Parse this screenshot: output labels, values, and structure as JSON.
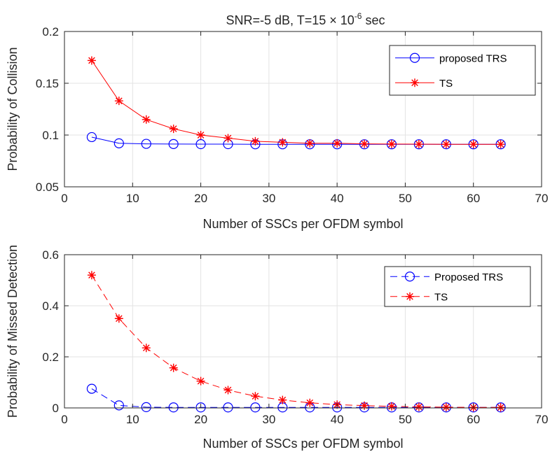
{
  "figure": {
    "title": "SNR=-5 dB, T=15 × 10",
    "title_exponent": "-6",
    "title_suffix": " sec"
  },
  "chart_data": [
    {
      "type": "line",
      "xlabel": "Number of SSCs per OFDM symbol",
      "ylabel": "Probability of Collision",
      "xlim": [
        0,
        70
      ],
      "ylim": [
        0.05,
        0.2
      ],
      "xticks": [
        0,
        10,
        20,
        30,
        40,
        50,
        60,
        70
      ],
      "yticks": [
        0.05,
        0.1,
        0.15,
        0.2
      ],
      "ytick_labels": [
        "0.05",
        "0.1",
        "0.15",
        "0.2"
      ],
      "grid": true,
      "legend_position": "top-right",
      "x": [
        4,
        8,
        12,
        16,
        20,
        24,
        28,
        32,
        36,
        40,
        44,
        48,
        52,
        56,
        60,
        64
      ],
      "series": [
        {
          "name": "proposed TRS",
          "color": "#0000ff",
          "marker": "circle",
          "line": "solid",
          "values": [
            0.098,
            0.092,
            0.0915,
            0.0913,
            0.0912,
            0.0912,
            0.0911,
            0.0911,
            0.0911,
            0.0911,
            0.0911,
            0.0911,
            0.0911,
            0.0911,
            0.0911,
            0.0911
          ]
        },
        {
          "name": "TS",
          "color": "#ff0000",
          "marker": "star",
          "line": "solid",
          "values": [
            0.172,
            0.133,
            0.115,
            0.106,
            0.1,
            0.097,
            0.094,
            0.093,
            0.092,
            0.092,
            0.0915,
            0.0913,
            0.0912,
            0.0911,
            0.0911,
            0.0911
          ]
        }
      ]
    },
    {
      "type": "line",
      "xlabel": "Number of SSCs per OFDM symbol",
      "ylabel": "Probability of Missed Detection",
      "xlim": [
        0,
        70
      ],
      "ylim": [
        0,
        0.6
      ],
      "xticks": [
        0,
        10,
        20,
        30,
        40,
        50,
        60,
        70
      ],
      "yticks": [
        0,
        0.2,
        0.4,
        0.6
      ],
      "ytick_labels": [
        "0",
        "0.2",
        "0.4",
        "0.6"
      ],
      "grid": true,
      "legend_position": "top-right",
      "x": [
        4,
        8,
        12,
        16,
        20,
        24,
        28,
        32,
        36,
        40,
        44,
        48,
        52,
        56,
        60,
        64
      ],
      "series": [
        {
          "name": "Proposed TRS",
          "color": "#0000ff",
          "marker": "circle",
          "line": "dashed",
          "values": [
            0.075,
            0.01,
            0.003,
            0.002,
            0.002,
            0.002,
            0.002,
            0.002,
            0.002,
            0.002,
            0.002,
            0.002,
            0.002,
            0.002,
            0.002,
            0.002
          ]
        },
        {
          "name": "TS",
          "color": "#ff0000",
          "marker": "star",
          "line": "dashed",
          "values": [
            0.52,
            0.35,
            0.235,
            0.157,
            0.105,
            0.07,
            0.046,
            0.031,
            0.02,
            0.013,
            0.009,
            0.006,
            0.004,
            0.003,
            0.002,
            0.002
          ]
        }
      ]
    }
  ]
}
